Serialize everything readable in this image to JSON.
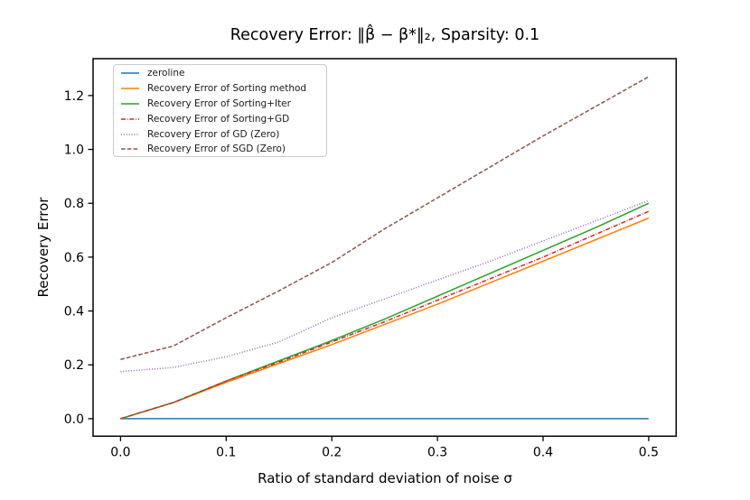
{
  "title": "Recovery Error: ‖β̂ − β*‖₂, Sparsity: 0.1",
  "xlabel": "Ratio of standard deviation of noise σ",
  "ylabel": "Recovery Error",
  "colors": {
    "blue": "#1f77b4",
    "orange": "#ff7f0e",
    "green": "#2ca02c",
    "red": "#d62728",
    "purple": "#9467bd",
    "brown": "#8c564b",
    "axis": "#000000",
    "legend_border": "#cccccc"
  },
  "chart_data": {
    "type": "line",
    "title": "Recovery Error: ‖β̂ − β*‖₂, Sparsity: 0.1",
    "xlabel": "Ratio of standard deviation of noise σ",
    "ylabel": "Recovery Error",
    "x": [
      0,
      0.05,
      0.1,
      0.15,
      0.2,
      0.25,
      0.3,
      0.35,
      0.4,
      0.45,
      0.5
    ],
    "series": [
      {
        "name": "zeroline",
        "color": "#1f77b4",
        "style": "solid",
        "values": [
          0,
          0,
          0,
          0,
          0,
          0,
          0,
          0,
          0,
          0,
          0
        ]
      },
      {
        "name": "Recovery Error of Sorting method",
        "color": "#ff7f0e",
        "style": "solid",
        "values": [
          0,
          0.06,
          0.135,
          0.205,
          0.275,
          0.35,
          0.425,
          0.505,
          0.585,
          0.665,
          0.745
        ]
      },
      {
        "name": "Recovery Error of Sorting+Iter",
        "color": "#2ca02c",
        "style": "solid",
        "values": [
          0,
          0.06,
          0.14,
          0.215,
          0.29,
          0.37,
          0.455,
          0.54,
          0.625,
          0.71,
          0.8
        ]
      },
      {
        "name": "Recovery Error of Sorting+GD",
        "color": "#d62728",
        "style": "dashdot",
        "values": [
          0,
          0.06,
          0.14,
          0.21,
          0.285,
          0.36,
          0.44,
          0.52,
          0.6,
          0.685,
          0.77
        ]
      },
      {
        "name": "Recovery Error of GD (Zero)",
        "color": "#9467bd",
        "style": "dotted",
        "values": [
          0.175,
          0.19,
          0.23,
          0.285,
          0.375,
          0.445,
          0.515,
          0.585,
          0.66,
          0.735,
          0.81
        ]
      },
      {
        "name": "Recovery Error of SGD (Zero)",
        "color": "#8c564b",
        "style": "dashed",
        "values": [
          0.22,
          0.27,
          0.375,
          0.475,
          0.58,
          0.705,
          0.82,
          0.935,
          1.05,
          1.16,
          1.27
        ]
      }
    ],
    "xticks": [
      "0.0",
      "0.1",
      "0.2",
      "0.3",
      "0.4",
      "0.5"
    ],
    "yticks": [
      "0.0",
      "0.2",
      "0.4",
      "0.6",
      "0.8",
      "1.0",
      "1.2"
    ],
    "xlim": [
      -0.026,
      0.526
    ],
    "ylim": [
      -0.065,
      1.337
    ],
    "grid": false,
    "legend_position": "upper left"
  }
}
